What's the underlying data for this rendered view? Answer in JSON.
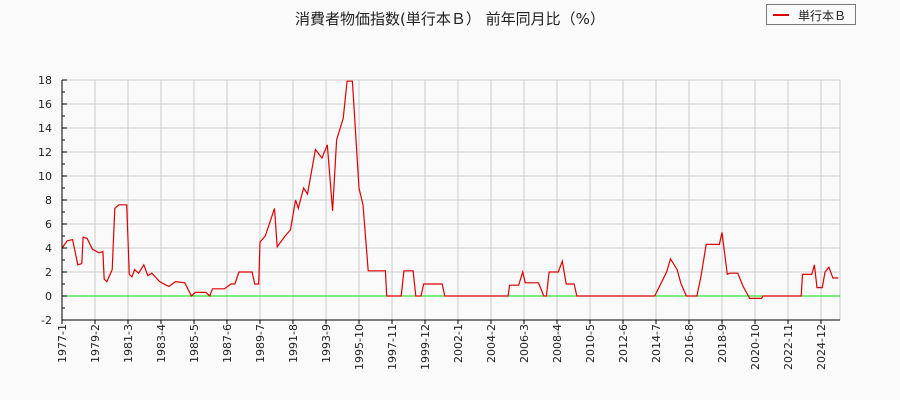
{
  "title": "消費者物価指数(単行本Ｂ） 前年同月比（%）",
  "legend": {
    "label": "単行本Ｂ",
    "color": "#dd0000"
  },
  "colors": {
    "series": "#dd0000",
    "zero_line": "#00dd00",
    "grid": "#cccccc",
    "axis": "#000000",
    "background": "#fafafa"
  },
  "chart_data": {
    "type": "line",
    "title": "消費者物価指数(単行本Ｂ） 前年同月比（%）",
    "xlabel": "",
    "ylabel": "",
    "ylim": [
      -2,
      18
    ],
    "yticks": [
      -2,
      0,
      2,
      4,
      6,
      8,
      10,
      12,
      14,
      16,
      18
    ],
    "xticks": [
      "1977-1",
      "1979-2",
      "1981-3",
      "1983-4",
      "1985-5",
      "1987-6",
      "1989-7",
      "1991-8",
      "1993-9",
      "1995-10",
      "1997-11",
      "1999-12",
      "2002-1",
      "2004-2",
      "2006-3",
      "2008-4",
      "2010-5",
      "2012-6",
      "2014-7",
      "2016-8",
      "2018-9",
      "2020-10",
      "2022-11",
      "2024-12"
    ],
    "grid": true,
    "legend_position": "top-right",
    "series": [
      {
        "name": "単行本Ｂ",
        "x_start": "1977-1",
        "keypoints": [
          [
            "1977-1",
            4.0
          ],
          [
            "1977-5",
            4.6
          ],
          [
            "1977-9",
            4.7
          ],
          [
            "1978-1",
            2.6
          ],
          [
            "1978-4",
            2.7
          ],
          [
            "1978-5",
            4.9
          ],
          [
            "1978-8",
            4.8
          ],
          [
            "1978-12",
            3.9
          ],
          [
            "1979-5",
            3.6
          ],
          [
            "1979-8",
            3.7
          ],
          [
            "1979-9",
            1.4
          ],
          [
            "1979-11",
            1.2
          ],
          [
            "1980-3",
            2.2
          ],
          [
            "1980-5",
            7.3
          ],
          [
            "1980-8",
            7.6
          ],
          [
            "1981-2",
            7.6
          ],
          [
            "1981-4",
            1.8
          ],
          [
            "1981-6",
            1.6
          ],
          [
            "1981-8",
            2.2
          ],
          [
            "1981-11",
            1.9
          ],
          [
            "1982-3",
            2.6
          ],
          [
            "1982-6",
            1.7
          ],
          [
            "1982-9",
            1.9
          ],
          [
            "1983-3",
            1.2
          ],
          [
            "1983-8",
            0.9
          ],
          [
            "1983-10",
            0.8
          ],
          [
            "1984-3",
            1.2
          ],
          [
            "1984-10",
            1.1
          ],
          [
            "1985-3",
            0.0
          ],
          [
            "1985-6",
            0.3
          ],
          [
            "1986-2",
            0.3
          ],
          [
            "1986-5",
            0.0
          ],
          [
            "1986-7",
            0.6
          ],
          [
            "1987-4",
            0.6
          ],
          [
            "1987-9",
            1.0
          ],
          [
            "1987-12",
            1.0
          ],
          [
            "1988-3",
            2.0
          ],
          [
            "1988-7",
            2.0
          ],
          [
            "1989-1",
            2.0
          ],
          [
            "1989-3",
            1.0
          ],
          [
            "1989-6",
            1.0
          ],
          [
            "1989-7",
            4.5
          ],
          [
            "1989-11",
            5.0
          ],
          [
            "1990-6",
            7.3
          ],
          [
            "1990-8",
            4.1
          ],
          [
            "1991-2",
            5.0
          ],
          [
            "1991-6",
            5.5
          ],
          [
            "1991-10",
            8.0
          ],
          [
            "1991-12",
            7.3
          ],
          [
            "1992-4",
            9.0
          ],
          [
            "1992-7",
            8.5
          ],
          [
            "1993-1",
            12.2
          ],
          [
            "1993-6",
            11.5
          ],
          [
            "1993-10",
            12.6
          ],
          [
            "1994-2",
            7.1
          ],
          [
            "1994-5",
            13.0
          ],
          [
            "1994-10",
            14.8
          ],
          [
            "1995-1",
            17.9
          ],
          [
            "1995-5",
            17.9
          ],
          [
            "1995-10",
            9.0
          ],
          [
            "1996-1",
            7.6
          ],
          [
            "1996-5",
            2.1
          ],
          [
            "1997-6",
            2.1
          ],
          [
            "1997-7",
            0.0
          ],
          [
            "1998-6",
            0.0
          ],
          [
            "1998-8",
            2.1
          ],
          [
            "1999-3",
            2.1
          ],
          [
            "1999-5",
            0.0
          ],
          [
            "1999-9",
            0.0
          ],
          [
            "1999-11",
            1.0
          ],
          [
            "2001-1",
            1.0
          ],
          [
            "2001-3",
            0.0
          ],
          [
            "2005-3",
            0.0
          ],
          [
            "2005-4",
            0.9
          ],
          [
            "2005-11",
            0.9
          ],
          [
            "2006-2",
            2.0
          ],
          [
            "2006-4",
            1.1
          ],
          [
            "2007-2",
            1.1
          ],
          [
            "2007-6",
            0.0
          ],
          [
            "2007-8",
            0.0
          ],
          [
            "2007-10",
            2.0
          ],
          [
            "2008-5",
            2.0
          ],
          [
            "2008-8",
            2.9
          ],
          [
            "2008-11",
            1.0
          ],
          [
            "2009-5",
            1.0
          ],
          [
            "2009-7",
            0.0
          ],
          [
            "2014-6",
            0.0
          ],
          [
            "2015-3",
            2.0
          ],
          [
            "2015-6",
            3.1
          ],
          [
            "2015-11",
            2.2
          ],
          [
            "2016-2",
            1.0
          ],
          [
            "2016-6",
            0.0
          ],
          [
            "2017-2",
            0.0
          ],
          [
            "2017-5",
            1.6
          ],
          [
            "2017-9",
            4.3
          ],
          [
            "2018-7",
            4.3
          ],
          [
            "2018-9",
            5.3
          ],
          [
            "2019-1",
            1.8
          ],
          [
            "2019-3",
            1.9
          ],
          [
            "2019-9",
            1.9
          ],
          [
            "2020-1",
            0.8
          ],
          [
            "2020-5",
            0.0
          ],
          [
            "2020-6",
            -0.2
          ],
          [
            "2021-3",
            -0.2
          ],
          [
            "2021-4",
            0.0
          ],
          [
            "2023-9",
            0.0
          ],
          [
            "2023-10",
            1.8
          ],
          [
            "2024-5",
            1.8
          ],
          [
            "2024-7",
            2.6
          ],
          [
            "2024-9",
            0.7
          ],
          [
            "2025-1",
            0.7
          ],
          [
            "2025-3",
            2.0
          ],
          [
            "2025-6",
            2.4
          ],
          [
            "2025-9",
            1.5
          ],
          [
            "2026-1",
            1.5
          ]
        ]
      }
    ]
  }
}
